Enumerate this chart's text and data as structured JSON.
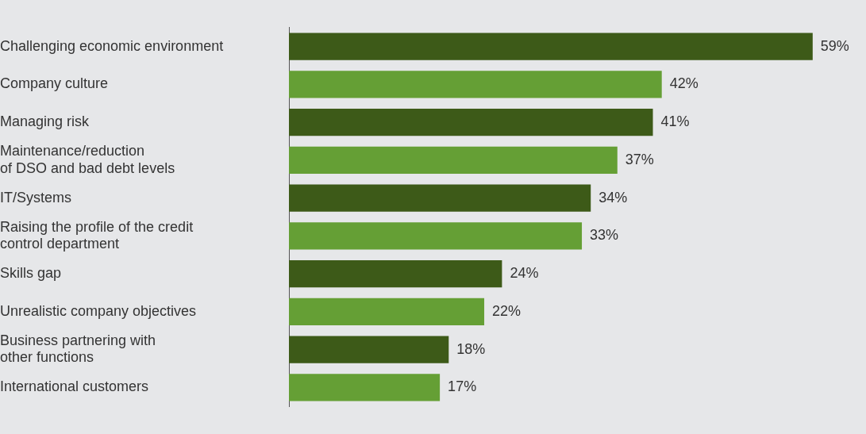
{
  "chart_data": {
    "type": "bar",
    "orientation": "horizontal",
    "categories": [
      "Challenging economic environment",
      "Company culture",
      "Managing risk",
      "Maintenance/reduction\nof DSO and bad debt levels",
      "IT/Systems",
      "Raising the profile of the credit\ncontrol department",
      "Skills gap",
      "Unrealistic company objectives",
      "Business partnering with\nother functions",
      "International customers"
    ],
    "values": [
      59,
      42,
      41,
      37,
      34,
      33,
      24,
      22,
      18,
      17
    ],
    "colors": [
      "#3d5a18",
      "#659f35",
      "#3d5a18",
      "#659f35",
      "#3d5a18",
      "#659f35",
      "#3d5a18",
      "#659f35",
      "#3d5a18",
      "#659f35"
    ],
    "value_labels": [
      "59%",
      "42%",
      "41%",
      "37%",
      "34%",
      "33%",
      "24%",
      "22%",
      "18%",
      "17%"
    ],
    "grid": false,
    "legend": false
  }
}
